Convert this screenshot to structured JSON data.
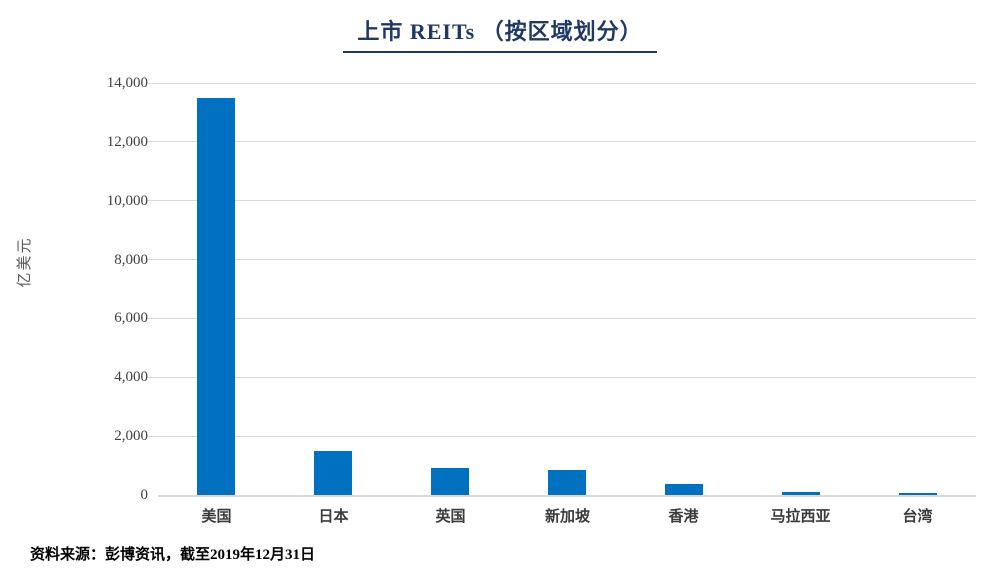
{
  "title": "上市 REITs （按区域划分）",
  "source_note": "资料来源：彭博资讯，截至2019年12月31日",
  "chart_data": {
    "type": "bar",
    "title": "上市 REITs （按区域划分）",
    "categories": [
      "美国",
      "日本",
      "英国",
      "新加坡",
      "香港",
      "马拉西亚",
      "台湾"
    ],
    "values": [
      13500,
      1500,
      910,
      850,
      390,
      90,
      50
    ],
    "xlabel": "",
    "ylabel": "亿美元",
    "ylim": [
      0,
      14000
    ],
    "ytick_step": 2000,
    "yticks": [
      "0",
      "2,000",
      "4,000",
      "6,000",
      "8,000",
      "10,000",
      "12,000",
      "14,000"
    ],
    "grid": true,
    "legend": "none"
  },
  "colors": {
    "bar": "#0070C0",
    "title": "#1F3864",
    "gridline": "#D9D9D9",
    "ytick_text": "#404040",
    "xtick_text": "#3B3B3B",
    "ylabel_text": "#595959",
    "source_text": "#000000"
  }
}
